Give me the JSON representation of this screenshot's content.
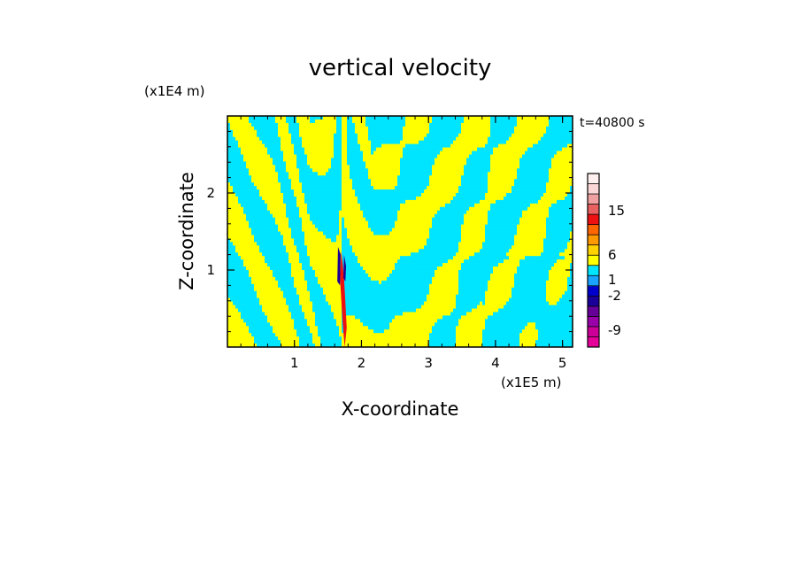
{
  "chart_data": {
    "type": "heatmap",
    "title": "vertical velocity",
    "xlabel": "X-coordinate",
    "ylabel": "Z-coordinate",
    "x_unit": "(x1E5 m)",
    "y_unit": "(x1E4 m)",
    "time_label": "t=40800 s",
    "xlim": [
      0,
      5.15
    ],
    "ylim": [
      0,
      3.0
    ],
    "x_ticks": [
      1,
      2,
      3,
      4,
      5
    ],
    "y_ticks": [
      1,
      2
    ],
    "grid": false,
    "colorbar": {
      "position": "right",
      "tick_labels": [
        "15",
        "6",
        "1",
        "-2",
        "-9"
      ],
      "levels": [
        {
          "color": "#e6009a"
        },
        {
          "color": "#cc0099"
        },
        {
          "color": "#9900aa"
        },
        {
          "color": "#660099"
        },
        {
          "color": "#1a0099"
        },
        {
          "color": "#0000cc"
        },
        {
          "color": "#1aa3ff"
        },
        {
          "color": "#00e5ff"
        },
        {
          "color": "#ffff00"
        },
        {
          "color": "#ffd200"
        },
        {
          "color": "#ff9900"
        },
        {
          "color": "#ff6600"
        },
        {
          "color": "#ee1111"
        },
        {
          "color": "#e86060"
        },
        {
          "color": "#f0a0a0"
        },
        {
          "color": "#fbd6d6"
        },
        {
          "color": "#fff0f0"
        }
      ]
    },
    "field_colors": {
      "positive": "#ffff00",
      "negative": "#00e5ff",
      "updraft": "#ee1111",
      "downdraft": "#1a0099"
    }
  }
}
